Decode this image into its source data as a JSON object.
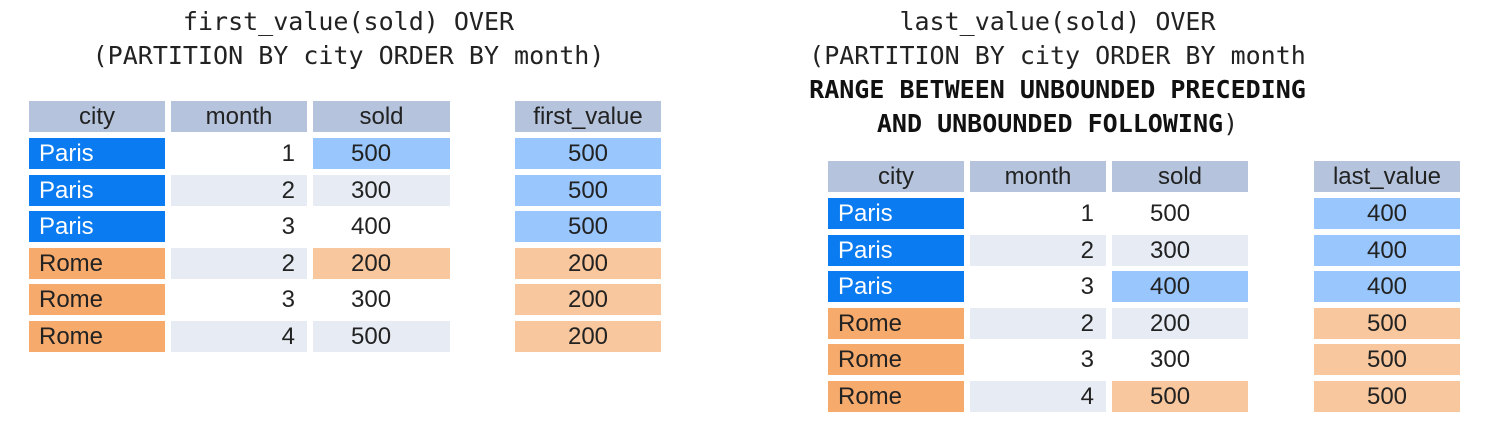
{
  "colors": {
    "header": "#b5c4dc",
    "paris_city": "#0a7bf0",
    "paris_light": "#99c6fd",
    "rome_city": "#f6aa6c",
    "rome_light": "#f8c79d",
    "stripe": "#e6ebf4"
  },
  "left": {
    "sql_line1": "first_value(sold) OVER",
    "sql_line2": "(PARTITION BY city ORDER BY month)",
    "headers": [
      "city",
      "month",
      "sold",
      "first_value"
    ],
    "rows": [
      {
        "city": "Paris",
        "month": "1",
        "sold": "500",
        "result": "500"
      },
      {
        "city": "Paris",
        "month": "2",
        "sold": "300",
        "result": "500"
      },
      {
        "city": "Paris",
        "month": "3",
        "sold": "400",
        "result": "500"
      },
      {
        "city": "Rome",
        "month": "2",
        "sold": "200",
        "result": "200"
      },
      {
        "city": "Rome",
        "month": "3",
        "sold": "300",
        "result": "200"
      },
      {
        "city": "Rome",
        "month": "4",
        "sold": "500",
        "result": "200"
      }
    ]
  },
  "right": {
    "sql_line1": "last_value(sold) OVER",
    "sql_line2": "(PARTITION BY city ORDER BY month",
    "sql_line3": "RANGE BETWEEN UNBOUNDED PRECEDING",
    "sql_line4_bold": "AND UNBOUNDED FOLLOWING",
    "sql_line4_tail": ")",
    "headers": [
      "city",
      "month",
      "sold",
      "last_value"
    ],
    "rows": [
      {
        "city": "Paris",
        "month": "1",
        "sold": "500",
        "result": "400"
      },
      {
        "city": "Paris",
        "month": "2",
        "sold": "300",
        "result": "400"
      },
      {
        "city": "Paris",
        "month": "3",
        "sold": "400",
        "result": "400"
      },
      {
        "city": "Rome",
        "month": "2",
        "sold": "200",
        "result": "500"
      },
      {
        "city": "Rome",
        "month": "3",
        "sold": "300",
        "result": "500"
      },
      {
        "city": "Rome",
        "month": "4",
        "sold": "500",
        "result": "500"
      }
    ]
  }
}
